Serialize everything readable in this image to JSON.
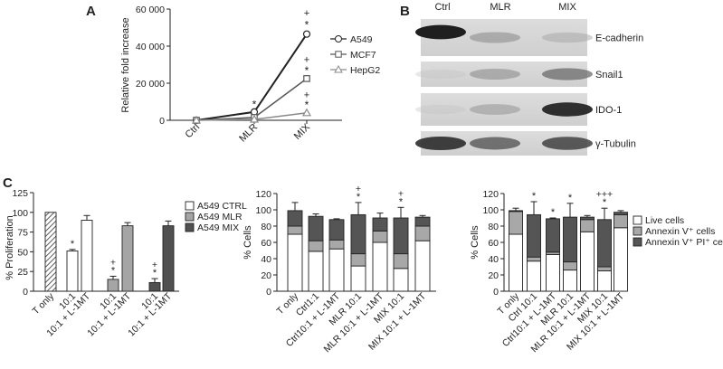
{
  "panel_labels": {
    "a": "A",
    "b": "B",
    "c": "C"
  },
  "chart_data": [
    {
      "id": "A",
      "type": "line",
      "categories": [
        "Ctrl",
        "MLR",
        "MIX"
      ],
      "ylabel": "Relative fold increase",
      "ylim": [
        0,
        60000
      ],
      "yticks": [
        "0",
        "20 000",
        "40 000",
        "60 000"
      ],
      "series": [
        {
          "name": "A549",
          "marker": "circle",
          "color": "#222222",
          "values": [
            0,
            4500,
            46500
          ]
        },
        {
          "name": "MCF7",
          "marker": "square",
          "color": "#555555",
          "values": [
            0,
            1500,
            22500
          ]
        },
        {
          "name": "HepG2",
          "marker": "triangle",
          "color": "#8a8a8a",
          "values": [
            0,
            500,
            4000
          ]
        }
      ],
      "annotations": [
        {
          "category": "MLR",
          "y": 8500,
          "text": "*"
        },
        {
          "category": "MIX",
          "y": 58000,
          "text": "+"
        },
        {
          "category": "MIX",
          "y": 51500,
          "text": "*"
        },
        {
          "category": "MIX",
          "y": 33000,
          "text": "+"
        },
        {
          "category": "MIX",
          "y": 26800,
          "text": "*"
        },
        {
          "category": "MIX",
          "y": 13800,
          "text": "+"
        },
        {
          "category": "MIX",
          "y": 8300,
          "text": "*"
        }
      ]
    },
    {
      "id": "C1",
      "type": "bar",
      "ylabel": "% Proliferation",
      "ylim": [
        0,
        125
      ],
      "yticks": [
        "0",
        "25",
        "50",
        "75",
        "100",
        "125"
      ],
      "categories": [
        "T only",
        "10:1",
        "10:1 + L-1MT",
        "10:1",
        "10:1 + L-1MT",
        "10:1",
        "10:1 + L-1MT"
      ],
      "values": [
        100,
        51,
        90,
        15,
        83,
        11,
        83
      ],
      "errors": [
        0,
        2,
        6,
        4,
        4,
        5,
        6
      ],
      "fills": [
        "hatch",
        "white",
        "white",
        "grey",
        "grey",
        "dark",
        "dark"
      ],
      "legend": [
        "A549 CTRL",
        "A549 MLR",
        "A549 MIX"
      ],
      "annotations": [
        {
          "bar": 1,
          "text": "*"
        },
        {
          "bar": 3,
          "text": "+"
        },
        {
          "bar": 3,
          "text": "*"
        },
        {
          "bar": 5,
          "text": "+"
        },
        {
          "bar": 5,
          "text": "*"
        }
      ]
    },
    {
      "id": "C2",
      "type": "bar",
      "ylabel": "% Cells",
      "ylim": [
        0,
        120
      ],
      "yticks": [
        "0",
        "20",
        "40",
        "60",
        "80",
        "100",
        "120"
      ],
      "categories": [
        "T only",
        "Ctrl1:1",
        "Ctrl10:1 + L-1MT",
        "MLR 10:1",
        "MLR 10:1 + L-1MT",
        "MIX 10:1",
        "MIX 10:1 + L-1MT"
      ],
      "segments": [
        [
          70,
          10,
          19
        ],
        [
          49,
          13,
          30
        ],
        [
          52,
          11,
          25
        ],
        [
          31,
          15,
          48
        ],
        [
          60,
          14,
          16
        ],
        [
          28,
          18,
          44
        ],
        [
          62,
          18,
          11
        ]
      ],
      "errors": [
        10,
        3,
        1,
        15,
        6,
        13,
        2
      ],
      "annotations": [
        {
          "bar": 3,
          "text": "+"
        },
        {
          "bar": 3,
          "text": "*"
        },
        {
          "bar": 5,
          "text": "+"
        },
        {
          "bar": 5,
          "text": "*"
        }
      ]
    },
    {
      "id": "C3",
      "type": "bar",
      "ylabel": "% Cells",
      "ylim": [
        0,
        120
      ],
      "yticks": [
        "0",
        "20",
        "40",
        "60",
        "80",
        "100",
        "120"
      ],
      "categories": [
        "T only",
        "Ctrl 10:1",
        "Ctrl10:1 + L-1MT",
        "MLR 10:1",
        "MLR 10:1 + L-1MT",
        "MIX 10:1",
        "MIX 10:1 + L-1MT"
      ],
      "segments": [
        [
          70,
          28,
          1
        ],
        [
          37,
          5,
          52
        ],
        [
          45,
          3,
          41
        ],
        [
          26,
          10,
          55
        ],
        [
          73,
          15,
          3
        ],
        [
          25,
          5,
          58
        ],
        [
          78,
          16,
          3
        ]
      ],
      "errors": [
        3,
        16,
        1,
        17,
        2,
        14,
        2
      ],
      "legend": [
        "Live cells",
        "Annexin V⁺ cells",
        "Annexin V⁺ PI⁺ cells"
      ],
      "annotations": [
        {
          "bar": 1,
          "text": "*"
        },
        {
          "bar": 2,
          "text": "*"
        },
        {
          "bar": 3,
          "text": "*"
        },
        {
          "bar": 5,
          "text": "+++"
        },
        {
          "bar": 5,
          "text": "*"
        }
      ]
    }
  ],
  "blot": {
    "columns": [
      "Ctrl",
      "MLR",
      "MIX"
    ],
    "rows": [
      {
        "label": "E-cadherin",
        "intensity": [
          0.95,
          0.35,
          0.22
        ]
      },
      {
        "label": "Snail1",
        "intensity": [
          0.05,
          0.35,
          0.55
        ]
      },
      {
        "label": "IDO-1",
        "intensity": [
          0.05,
          0.3,
          0.9
        ]
      },
      {
        "label": "γ-Tubulin",
        "intensity": [
          0.85,
          0.65,
          0.75
        ]
      }
    ]
  }
}
